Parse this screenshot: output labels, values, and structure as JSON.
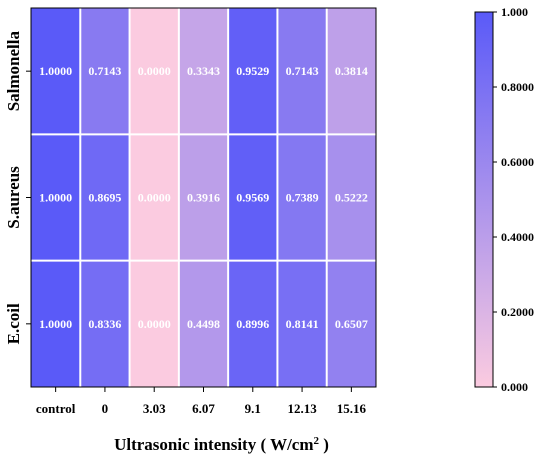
{
  "chart_data": {
    "type": "heatmap",
    "x_categories": [
      "control",
      "0",
      "3.03",
      "6.07",
      "9.1",
      "12.13",
      "15.16"
    ],
    "y_categories": [
      "Salmonella",
      "S.aureus",
      "E.coil"
    ],
    "values": [
      [
        1.0,
        0.7143,
        0.0,
        0.3343,
        0.9529,
        0.7143,
        0.3814
      ],
      [
        1.0,
        0.8695,
        0.0,
        0.3916,
        0.9569,
        0.7389,
        0.5222
      ],
      [
        1.0,
        0.8336,
        0.0,
        0.4498,
        0.8996,
        0.8141,
        0.6507
      ]
    ],
    "value_labels": [
      [
        "1.0000",
        "0.7143",
        "0.0000",
        "0.3343",
        "0.9529",
        "0.7143",
        "0.3814"
      ],
      [
        "1.0000",
        "0.8695",
        "0.0000",
        "0.3916",
        "0.9569",
        "0.7389",
        "0.5222"
      ],
      [
        "1.0000",
        "0.8336",
        "0.0000",
        "0.4498",
        "0.8996",
        "0.8141",
        "0.6507"
      ]
    ],
    "xlabel_main": "Ultrasonic intensity ( W/cm",
    "xlabel_sup": "2",
    "xlabel_tail": " )",
    "ylabel": "",
    "colorbar": {
      "range": [
        0,
        1
      ],
      "ticks": [
        "1.000",
        "0.8000",
        "0.6000",
        "0.4000",
        "0.2000",
        "0.000"
      ],
      "tick_values": [
        1.0,
        0.8,
        0.6,
        0.4,
        0.2,
        0.0
      ],
      "color_low": "#fbcbe0",
      "color_high": "#5a5af8"
    }
  }
}
